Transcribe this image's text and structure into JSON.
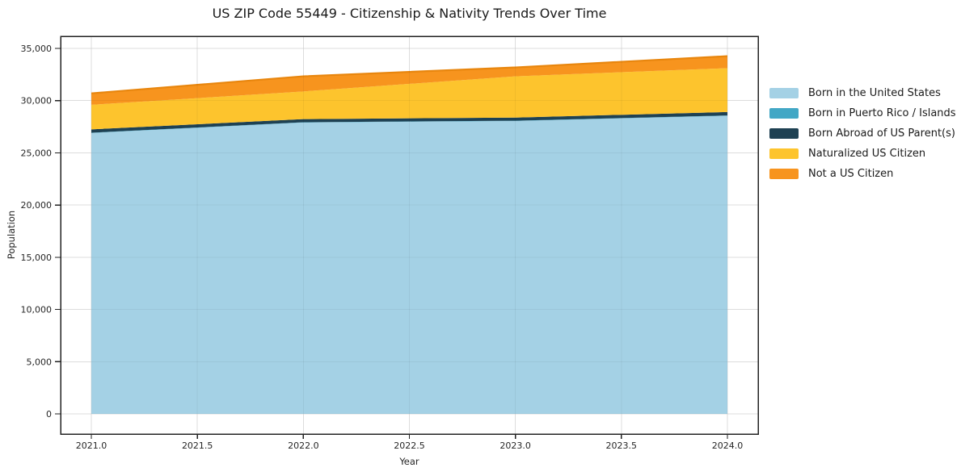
{
  "chart_data": {
    "type": "area",
    "stacked": true,
    "title": "US ZIP Code 55449 - Citizenship & Nativity Trends Over Time",
    "xlabel": "Year",
    "ylabel": "Population",
    "x": [
      2021,
      2022,
      2023,
      2024
    ],
    "series": [
      {
        "name": "Born in the United States",
        "color": "#a4d1e5",
        "values": [
          26900,
          27900,
          28050,
          28550
        ]
      },
      {
        "name": "Born in Puerto Rico / Islands",
        "color": "#42a7c5",
        "values": [
          30,
          30,
          30,
          30
        ]
      },
      {
        "name": "Born Abroad of US Parent(s)",
        "color": "#1e4153",
        "values": [
          320,
          300,
          300,
          330
        ]
      },
      {
        "name": "Naturalized US Citizen",
        "color": "#fdc42d",
        "values": [
          2350,
          2650,
          3950,
          4200
        ]
      },
      {
        "name": "Not a US Citizen",
        "color": "#f7941e",
        "values": [
          1100,
          1450,
          850,
          1150
        ]
      }
    ],
    "totals": [
      30700,
      32330,
      33180,
      34260
    ],
    "top_edge_color": "#e8860e",
    "xticks": {
      "values": [
        2021.0,
        2021.5,
        2022.0,
        2022.5,
        2023.0,
        2023.5,
        2024.0
      ],
      "labels": [
        "2021.0",
        "2021.5",
        "2022.0",
        "2022.5",
        "2023.0",
        "2023.5",
        "2024.0"
      ]
    },
    "yticks": {
      "values": [
        0,
        5000,
        10000,
        15000,
        20000,
        25000,
        30000,
        35000
      ],
      "labels": [
        "0",
        "5,000",
        "10,000",
        "15,000",
        "20,000",
        "25,000",
        "30,000",
        "35,000"
      ]
    },
    "xlim": [
      2020.855,
      2024.145
    ],
    "ylim": [
      -1930,
      36160
    ],
    "grid": true,
    "grid_color": "#e8e8e8",
    "spine_color": "#222222",
    "legend_position": "right-outside"
  }
}
